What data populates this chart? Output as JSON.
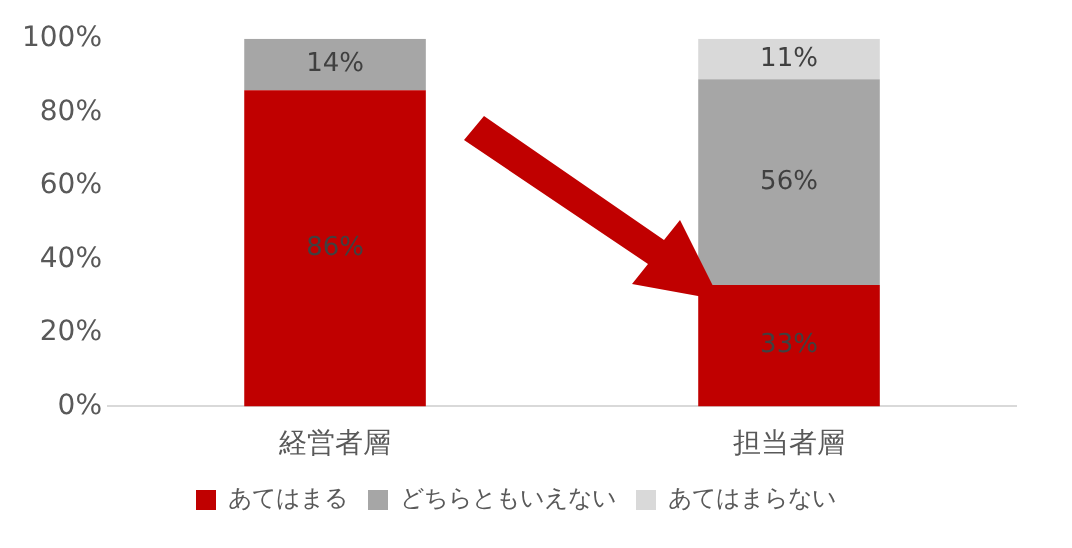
{
  "chart_data": {
    "type": "bar",
    "stacked": true,
    "categories": [
      "経営者層",
      "担当者層"
    ],
    "series": [
      {
        "name": "あてはまる",
        "color": "#c00000",
        "values": [
          86,
          33
        ],
        "value_labels": [
          "86%",
          "33%"
        ]
      },
      {
        "name": "どちらともいえない",
        "color": "#a6a6a6",
        "values": [
          14,
          56
        ],
        "value_labels": [
          "14%",
          "56%"
        ]
      },
      {
        "name": "あてはまらない",
        "color": "#d9d9d9",
        "values": [
          null,
          11
        ],
        "value_labels": [
          null,
          "11%"
        ]
      }
    ],
    "ylim": [
      0,
      100
    ],
    "yticks": [
      {
        "value": 0,
        "label": "0%"
      },
      {
        "value": 20,
        "label": "20%"
      },
      {
        "value": 40,
        "label": "40%"
      },
      {
        "value": 60,
        "label": "60%"
      },
      {
        "value": 80,
        "label": "80%"
      },
      {
        "value": 100,
        "label": "100%"
      }
    ],
    "grid": false,
    "legend": "bottom"
  }
}
